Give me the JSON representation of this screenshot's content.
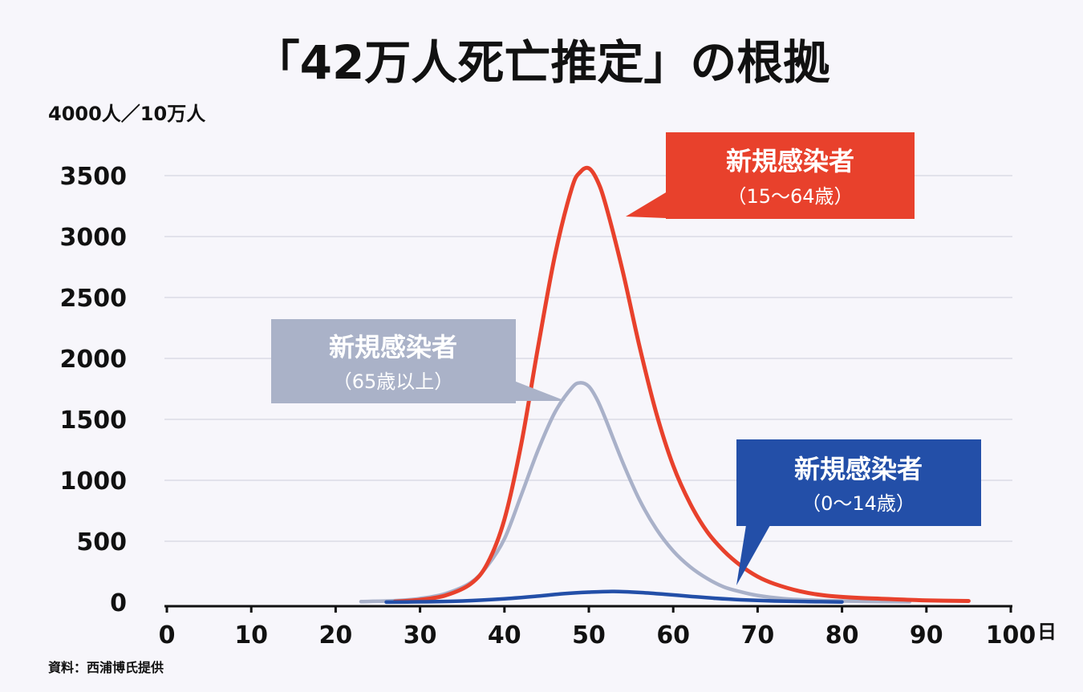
{
  "title": "「42万人死亡推定」の根拠",
  "source": "資料：西浦博氏提供",
  "chart_data": {
    "type": "line",
    "y_unit_label": "4000人／10万人",
    "x_unit_label": "日",
    "ylim": [
      0,
      4000
    ],
    "xlim": [
      0,
      100
    ],
    "y_ticks": [
      "0",
      "500",
      "1000",
      "1500",
      "2000",
      "2500",
      "3000",
      "3500"
    ],
    "x_ticks": [
      "0",
      "10",
      "20",
      "30",
      "40",
      "50",
      "60",
      "70",
      "80",
      "90",
      "100"
    ],
    "grid": true,
    "series": [
      {
        "name": "新規感染者（15〜64歳）",
        "color": "#e8412c",
        "x": [
          27,
          30,
          33,
          36,
          38,
          40,
          42,
          44,
          46,
          48,
          49,
          50,
          51,
          52,
          54,
          56,
          58,
          60,
          62,
          64,
          66,
          68,
          70,
          72,
          75,
          78,
          82,
          86,
          90,
          95
        ],
        "y": [
          5,
          20,
          55,
          150,
          320,
          680,
          1300,
          2100,
          2850,
          3400,
          3530,
          3560,
          3460,
          3260,
          2720,
          2100,
          1550,
          1120,
          810,
          580,
          420,
          300,
          210,
          150,
          90,
          55,
          35,
          25,
          15,
          10
        ]
      },
      {
        "name": "新規感染者（65歳以上）",
        "color": "#a9b1c9",
        "x": [
          23,
          27,
          30,
          33,
          36,
          38,
          40,
          42,
          44,
          46,
          48,
          49,
          50,
          51,
          52,
          54,
          56,
          58,
          60,
          62,
          64,
          66,
          68,
          70,
          73,
          76,
          80,
          84,
          88
        ],
        "y": [
          5,
          12,
          30,
          70,
          160,
          300,
          520,
          880,
          1250,
          1560,
          1760,
          1800,
          1770,
          1660,
          1500,
          1150,
          840,
          600,
          420,
          290,
          195,
          125,
          85,
          55,
          30,
          18,
          10,
          6,
          3
        ]
      },
      {
        "name": "新規感染者（0〜14歳）",
        "color": "#234fa8",
        "x": [
          26,
          30,
          35,
          40,
          44,
          47,
          50,
          53,
          56,
          59,
          62,
          65,
          68,
          72,
          76,
          80
        ],
        "y": [
          1,
          3,
          10,
          28,
          50,
          70,
          82,
          88,
          80,
          65,
          48,
          32,
          20,
          10,
          5,
          2
        ]
      }
    ],
    "callouts": [
      {
        "series_index": 0,
        "title": "新規感染者",
        "sub": "（15〜64歳）",
        "bg": "#e8412c"
      },
      {
        "series_index": 1,
        "title": "新規感染者",
        "sub": "（65歳以上）",
        "bg": "#aab2c8"
      },
      {
        "series_index": 2,
        "title": "新規感染者",
        "sub": "（0〜14歳）",
        "bg": "#234fa8"
      }
    ]
  }
}
